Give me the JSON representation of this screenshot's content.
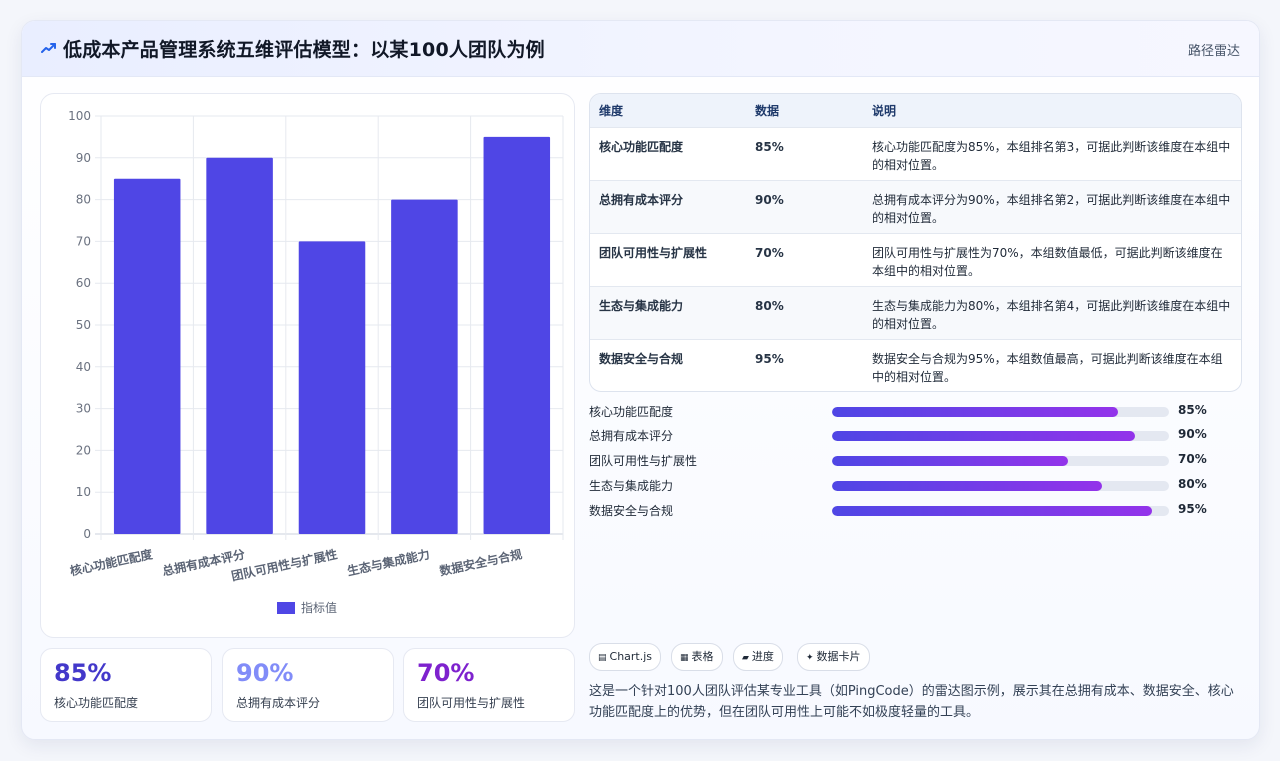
{
  "header": {
    "title": "低成本产品管理系统五维评估模型：以某100人团队为例",
    "icon": "chart-line-icon",
    "link_label": "路径雷达"
  },
  "colors": {
    "bar": "#4f46e5",
    "accent_start": "#4f46e5",
    "accent_end": "#9333ea",
    "stat1": "#4338ca",
    "stat2": "#818cf8",
    "stat3": "#7e22ce"
  },
  "chart_data": {
    "type": "bar",
    "categories": [
      "核心功能匹配度",
      "总拥有成本评分",
      "团队可用性与扩展性",
      "生态与集成能力",
      "数据安全与合规"
    ],
    "series": [
      {
        "name": "指标值",
        "values": [
          85,
          90,
          70,
          80,
          95
        ]
      }
    ],
    "ylim": [
      0,
      100
    ],
    "yticks": [
      0,
      10,
      20,
      30,
      40,
      50,
      60,
      70,
      80,
      90,
      100
    ],
    "grid": true,
    "legend": "bottom"
  },
  "table": {
    "headers": [
      "维度",
      "数据",
      "说明"
    ],
    "rows": [
      {
        "dim": "核心功能匹配度",
        "value": "85%",
        "note": "核心功能匹配度为85%，本组排名第3，可据此判断该维度在本组中的相对位置。"
      },
      {
        "dim": "总拥有成本评分",
        "value": "90%",
        "note": "总拥有成本评分为90%，本组排名第2，可据此判断该维度在本组中的相对位置。"
      },
      {
        "dim": "团队可用性与扩展性",
        "value": "70%",
        "note": "团队可用性与扩展性为70%，本组数值最低，可据此判断该维度在本组中的相对位置。"
      },
      {
        "dim": "生态与集成能力",
        "value": "80%",
        "note": "生态与集成能力为80%，本组排名第4，可据此判断该维度在本组中的相对位置。"
      },
      {
        "dim": "数据安全与合规",
        "value": "95%",
        "note": "数据安全与合规为95%，本组数值最高，可据此判断该维度在本组中的相对位置。"
      }
    ]
  },
  "progress": [
    {
      "label": "核心功能匹配度",
      "value": "85%",
      "fraction": 0.85
    },
    {
      "label": "总拥有成本评分",
      "value": "90%",
      "fraction": 0.9
    },
    {
      "label": "团队可用性与扩展性",
      "value": "70%",
      "fraction": 0.7
    },
    {
      "label": "生态与集成能力",
      "value": "80%",
      "fraction": 0.8
    },
    {
      "label": "数据安全与合规",
      "value": "95%",
      "fraction": 0.95
    }
  ],
  "stats": [
    {
      "value": "85%",
      "label": "核心功能匹配度"
    },
    {
      "value": "90%",
      "label": "总拥有成本评分"
    },
    {
      "value": "70%",
      "label": "团队可用性与扩展性"
    }
  ],
  "tags": [
    {
      "icon": "▤",
      "label": "Chart.js"
    },
    {
      "icon": "▦",
      "label": "表格"
    },
    {
      "icon": "▰",
      "label": "进度"
    },
    {
      "icon": "✦",
      "label": "数据卡片"
    }
  ],
  "description": "这是一个针对100人团队评估某专业工具（如PingCode）的雷达图示例，展示其在总拥有成本、数据安全、核心功能匹配度上的优势，但在团队可用性上可能不如极度轻量的工具。"
}
